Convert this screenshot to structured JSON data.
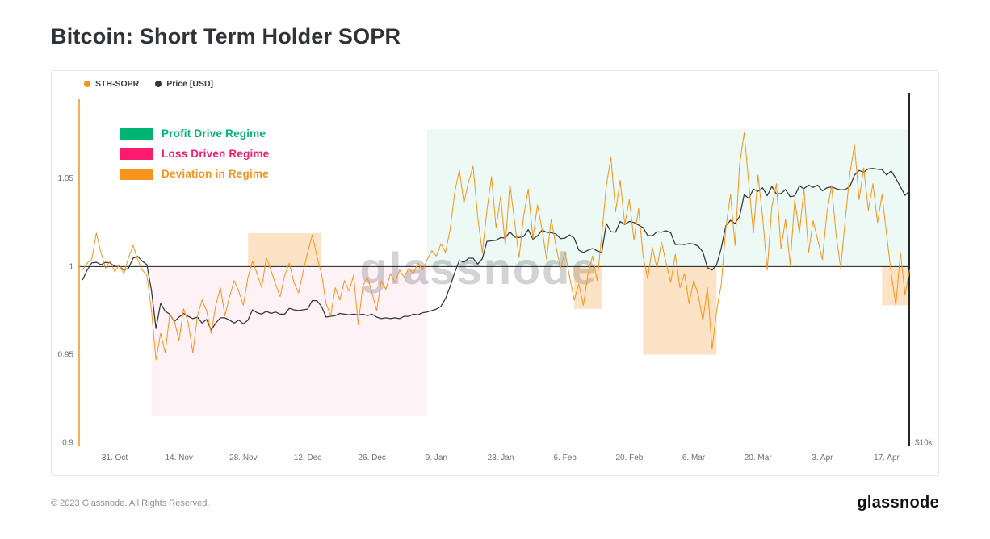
{
  "page": {
    "title": "Bitcoin: Short Term Holder SOPR",
    "footer": {
      "copyright": "© 2023 Glassnode. All Rights Reserved.",
      "brand": "glassnode"
    }
  },
  "watermark": "glassnode",
  "chart_data": {
    "type": "line",
    "title": "Bitcoin: Short Term Holder SOPR",
    "x_start_date": "2022-10-24",
    "x_interval": "1 day",
    "x_ticks": [
      {
        "label": "31. Oct",
        "day": 7
      },
      {
        "label": "14. Nov",
        "day": 21
      },
      {
        "label": "28. Nov",
        "day": 35
      },
      {
        "label": "12. Dec",
        "day": 49
      },
      {
        "label": "26. Dec",
        "day": 63
      },
      {
        "label": "9. Jan",
        "day": 77
      },
      {
        "label": "23. Jan",
        "day": 91
      },
      {
        "label": "6. Feb",
        "day": 105
      },
      {
        "label": "20. Feb",
        "day": 119
      },
      {
        "label": "6. Mar",
        "day": 133
      },
      {
        "label": "20. Mar",
        "day": 147
      },
      {
        "label": "3. Apr",
        "day": 161
      },
      {
        "label": "17. Apr",
        "day": 175
      }
    ],
    "left_axis": {
      "label": "STH-SOPR",
      "color": "#f7941d",
      "range": [
        0.9,
        1.08
      ],
      "ticks": [
        {
          "label": "1.05",
          "value": 1.05
        },
        {
          "label": "1",
          "value": 1.0
        },
        {
          "label": "0.95",
          "value": 0.95
        },
        {
          "label": "0.9",
          "value": 0.9
        }
      ]
    },
    "right_axis": {
      "label": "Price [USD]",
      "scale": "log",
      "bottom_label": "$10k",
      "bottom_value": 10000,
      "anchor_left_value": 0.9,
      "left_units_per_decade": 0.322
    },
    "baseline": 1.0,
    "regime_legend": [
      {
        "label": "Profit Drive Regime",
        "color": "#00b572"
      },
      {
        "label": "Loss Driven Regime",
        "color": "#fa1a6e"
      },
      {
        "label": "Deviation in Regime",
        "color": "#f7941d"
      }
    ],
    "region_styles": {
      "profit": "rgba(17,183,121,0.08)",
      "loss": "rgba(250,26,110,0.055)",
      "deviation": "rgba(247,148,29,0.26)"
    },
    "regions": [
      {
        "regime": "loss",
        "start_day": 15,
        "end_day": 75,
        "from": 0.915,
        "to": 1.0
      },
      {
        "regime": "profit",
        "start_day": 75,
        "end_day": 180,
        "from": 1.0,
        "to": 1.078
      },
      {
        "regime": "deviation",
        "start_day": 36,
        "end_day": 52,
        "from": 1.0,
        "to": 1.019
      },
      {
        "regime": "deviation",
        "start_day": 107,
        "end_day": 113,
        "from": 0.976,
        "to": 1.0
      },
      {
        "regime": "deviation",
        "start_day": 122,
        "end_day": 138,
        "from": 0.95,
        "to": 1.0
      },
      {
        "regime": "deviation",
        "start_day": 174,
        "end_day": 180,
        "from": 0.978,
        "to": 1.0
      }
    ],
    "series": [
      {
        "name": "STH-SOPR",
        "color": "#f7941d",
        "axis": "left",
        "values": [
          0.998,
          1.002,
          1.004,
          1.019,
          1.008,
          0.999,
          1.003,
          0.997,
          1.001,
          0.996,
          1.005,
          1.012,
          1.004,
          0.998,
          0.995,
          0.975,
          0.947,
          0.962,
          0.951,
          0.973,
          0.969,
          0.958,
          0.976,
          0.968,
          0.951,
          0.972,
          0.981,
          0.975,
          0.962,
          0.978,
          0.988,
          0.972,
          0.983,
          0.992,
          0.986,
          0.978,
          0.994,
          1.003,
          0.996,
          0.988,
          1.005,
          0.998,
          0.99,
          0.983,
          0.995,
          1.002,
          0.991,
          0.985,
          0.997,
          1.008,
          1.018,
          1.006,
          0.996,
          0.979,
          0.972,
          0.988,
          0.981,
          0.992,
          0.986,
          0.995,
          0.967,
          0.989,
          0.994,
          0.985,
          0.975,
          0.992,
          0.987,
          0.996,
          0.991,
          0.998,
          0.994,
          0.999,
          0.996,
          1.002,
          0.998,
          1.004,
          1.009,
          1.006,
          1.013,
          1.008,
          1.021,
          1.042,
          1.055,
          1.036,
          1.048,
          1.057,
          1.028,
          1.008,
          1.032,
          1.051,
          1.022,
          1.04,
          1.012,
          1.047,
          1.026,
          1.005,
          1.029,
          1.044,
          1.016,
          1.035,
          1.021,
          1.004,
          1.027,
          1.012,
          0.999,
          1.008,
          0.994,
          0.981,
          0.99,
          0.978,
          0.996,
          1.006,
          0.992,
          1.018,
          1.046,
          1.062,
          1.031,
          1.049,
          1.024,
          1.038,
          1.015,
          1.033,
          1.006,
          0.993,
          1.011,
          0.999,
          1.014,
          1.002,
          0.991,
          1.007,
          0.988,
          0.996,
          0.979,
          0.992,
          0.984,
          0.969,
          0.988,
          0.953,
          0.975,
          0.99,
          1.022,
          1.041,
          1.012,
          1.058,
          1.076,
          1.047,
          1.019,
          1.052,
          1.028,
          0.998,
          1.034,
          1.047,
          1.01,
          1.027,
          1.001,
          1.038,
          1.019,
          1.044,
          1.008,
          1.026,
          1.015,
          1.004,
          1.031,
          1.046,
          1.018,
          0.999,
          1.027,
          1.053,
          1.069,
          1.038,
          1.056,
          1.032,
          1.047,
          1.025,
          1.041,
          1.018,
          0.996,
          0.978,
          1.008,
          0.984,
          0.998
        ]
      },
      {
        "name": "Price [USD]",
        "color": "#35363a",
        "axis": "right",
        "unit": "USD",
        "values": [
          19350,
          20150,
          20750,
          20800,
          20600,
          20800,
          20750,
          20450,
          20450,
          20150,
          20300,
          21150,
          21300,
          20900,
          20600,
          18550,
          15900,
          17600,
          17050,
          16850,
          16350,
          16650,
          16900,
          16700,
          16550,
          16650,
          16250,
          16500,
          15800,
          16250,
          16600,
          16600,
          16450,
          16250,
          16450,
          16200,
          16450,
          17150,
          16950,
          16850,
          17050,
          16900,
          17000,
          16850,
          16850,
          17250,
          17150,
          17100,
          17150,
          17200,
          17800,
          17800,
          17400,
          16650,
          16700,
          16750,
          16900,
          16850,
          16800,
          16850,
          16800,
          16850,
          16750,
          16850,
          16650,
          16550,
          16600,
          16550,
          16600,
          16550,
          16700,
          16700,
          16850,
          16800,
          16950,
          17000,
          17100,
          17200,
          17400,
          17950,
          18850,
          19950,
          20950,
          20800,
          21150,
          21150,
          20650,
          21100,
          22650,
          22700,
          22750,
          23000,
          22950,
          23550,
          23050,
          23000,
          23100,
          23750,
          22850,
          23150,
          23700,
          23500,
          23450,
          23350,
          22900,
          22950,
          23250,
          22950,
          21850,
          21650,
          21850,
          22000,
          21800,
          21650,
          24350,
          23550,
          23500,
          24550,
          24250,
          24550,
          24450,
          24200,
          23950,
          23200,
          23150,
          23550,
          23500,
          23650,
          23450,
          22350,
          22400,
          22350,
          22450,
          22400,
          22200,
          21700,
          20350,
          20150,
          20600,
          22050,
          24150,
          24650,
          24350,
          25050,
          27400,
          26950,
          28000,
          27750,
          28150,
          27250,
          28300,
          27450,
          27500,
          27950,
          27150,
          27250,
          28350,
          28050,
          28450,
          28200,
          28450,
          27800,
          28150,
          28250,
          28050,
          27900,
          27950,
          28300,
          29650,
          30200,
          30000,
          30400,
          30450,
          30350,
          30300,
          29650,
          30150,
          29250,
          28250,
          27300,
          27800
        ]
      }
    ]
  }
}
